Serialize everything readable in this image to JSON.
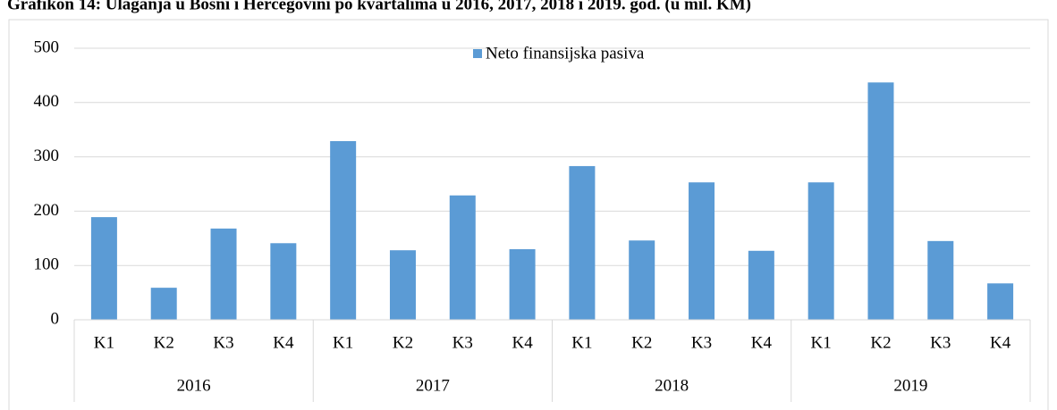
{
  "chart_data": {
    "type": "bar",
    "title": "Grafikon 14: Ulaganja u Bosni i Hercegovini po kvartalima u 2016, 2017, 2018 i 2019. god. (u mil. KM)",
    "categories": [
      "K1",
      "K2",
      "K3",
      "K4",
      "K1",
      "K2",
      "K3",
      "K4",
      "K1",
      "K2",
      "K3",
      "K4",
      "K1",
      "K2",
      "K3",
      "K4"
    ],
    "category_groups": [
      "2016",
      "2017",
      "2018",
      "2019"
    ],
    "series": [
      {
        "name": "Neto finansijska pasiva",
        "color": "#5b9bd5",
        "values": [
          189,
          59,
          168,
          141,
          329,
          128,
          229,
          130,
          283,
          146,
          253,
          127,
          253,
          437,
          145,
          67
        ]
      }
    ],
    "ylim": [
      0,
      500
    ],
    "yticks": [
      0,
      100,
      200,
      300,
      400,
      500
    ],
    "grid": true,
    "legend": "top"
  }
}
